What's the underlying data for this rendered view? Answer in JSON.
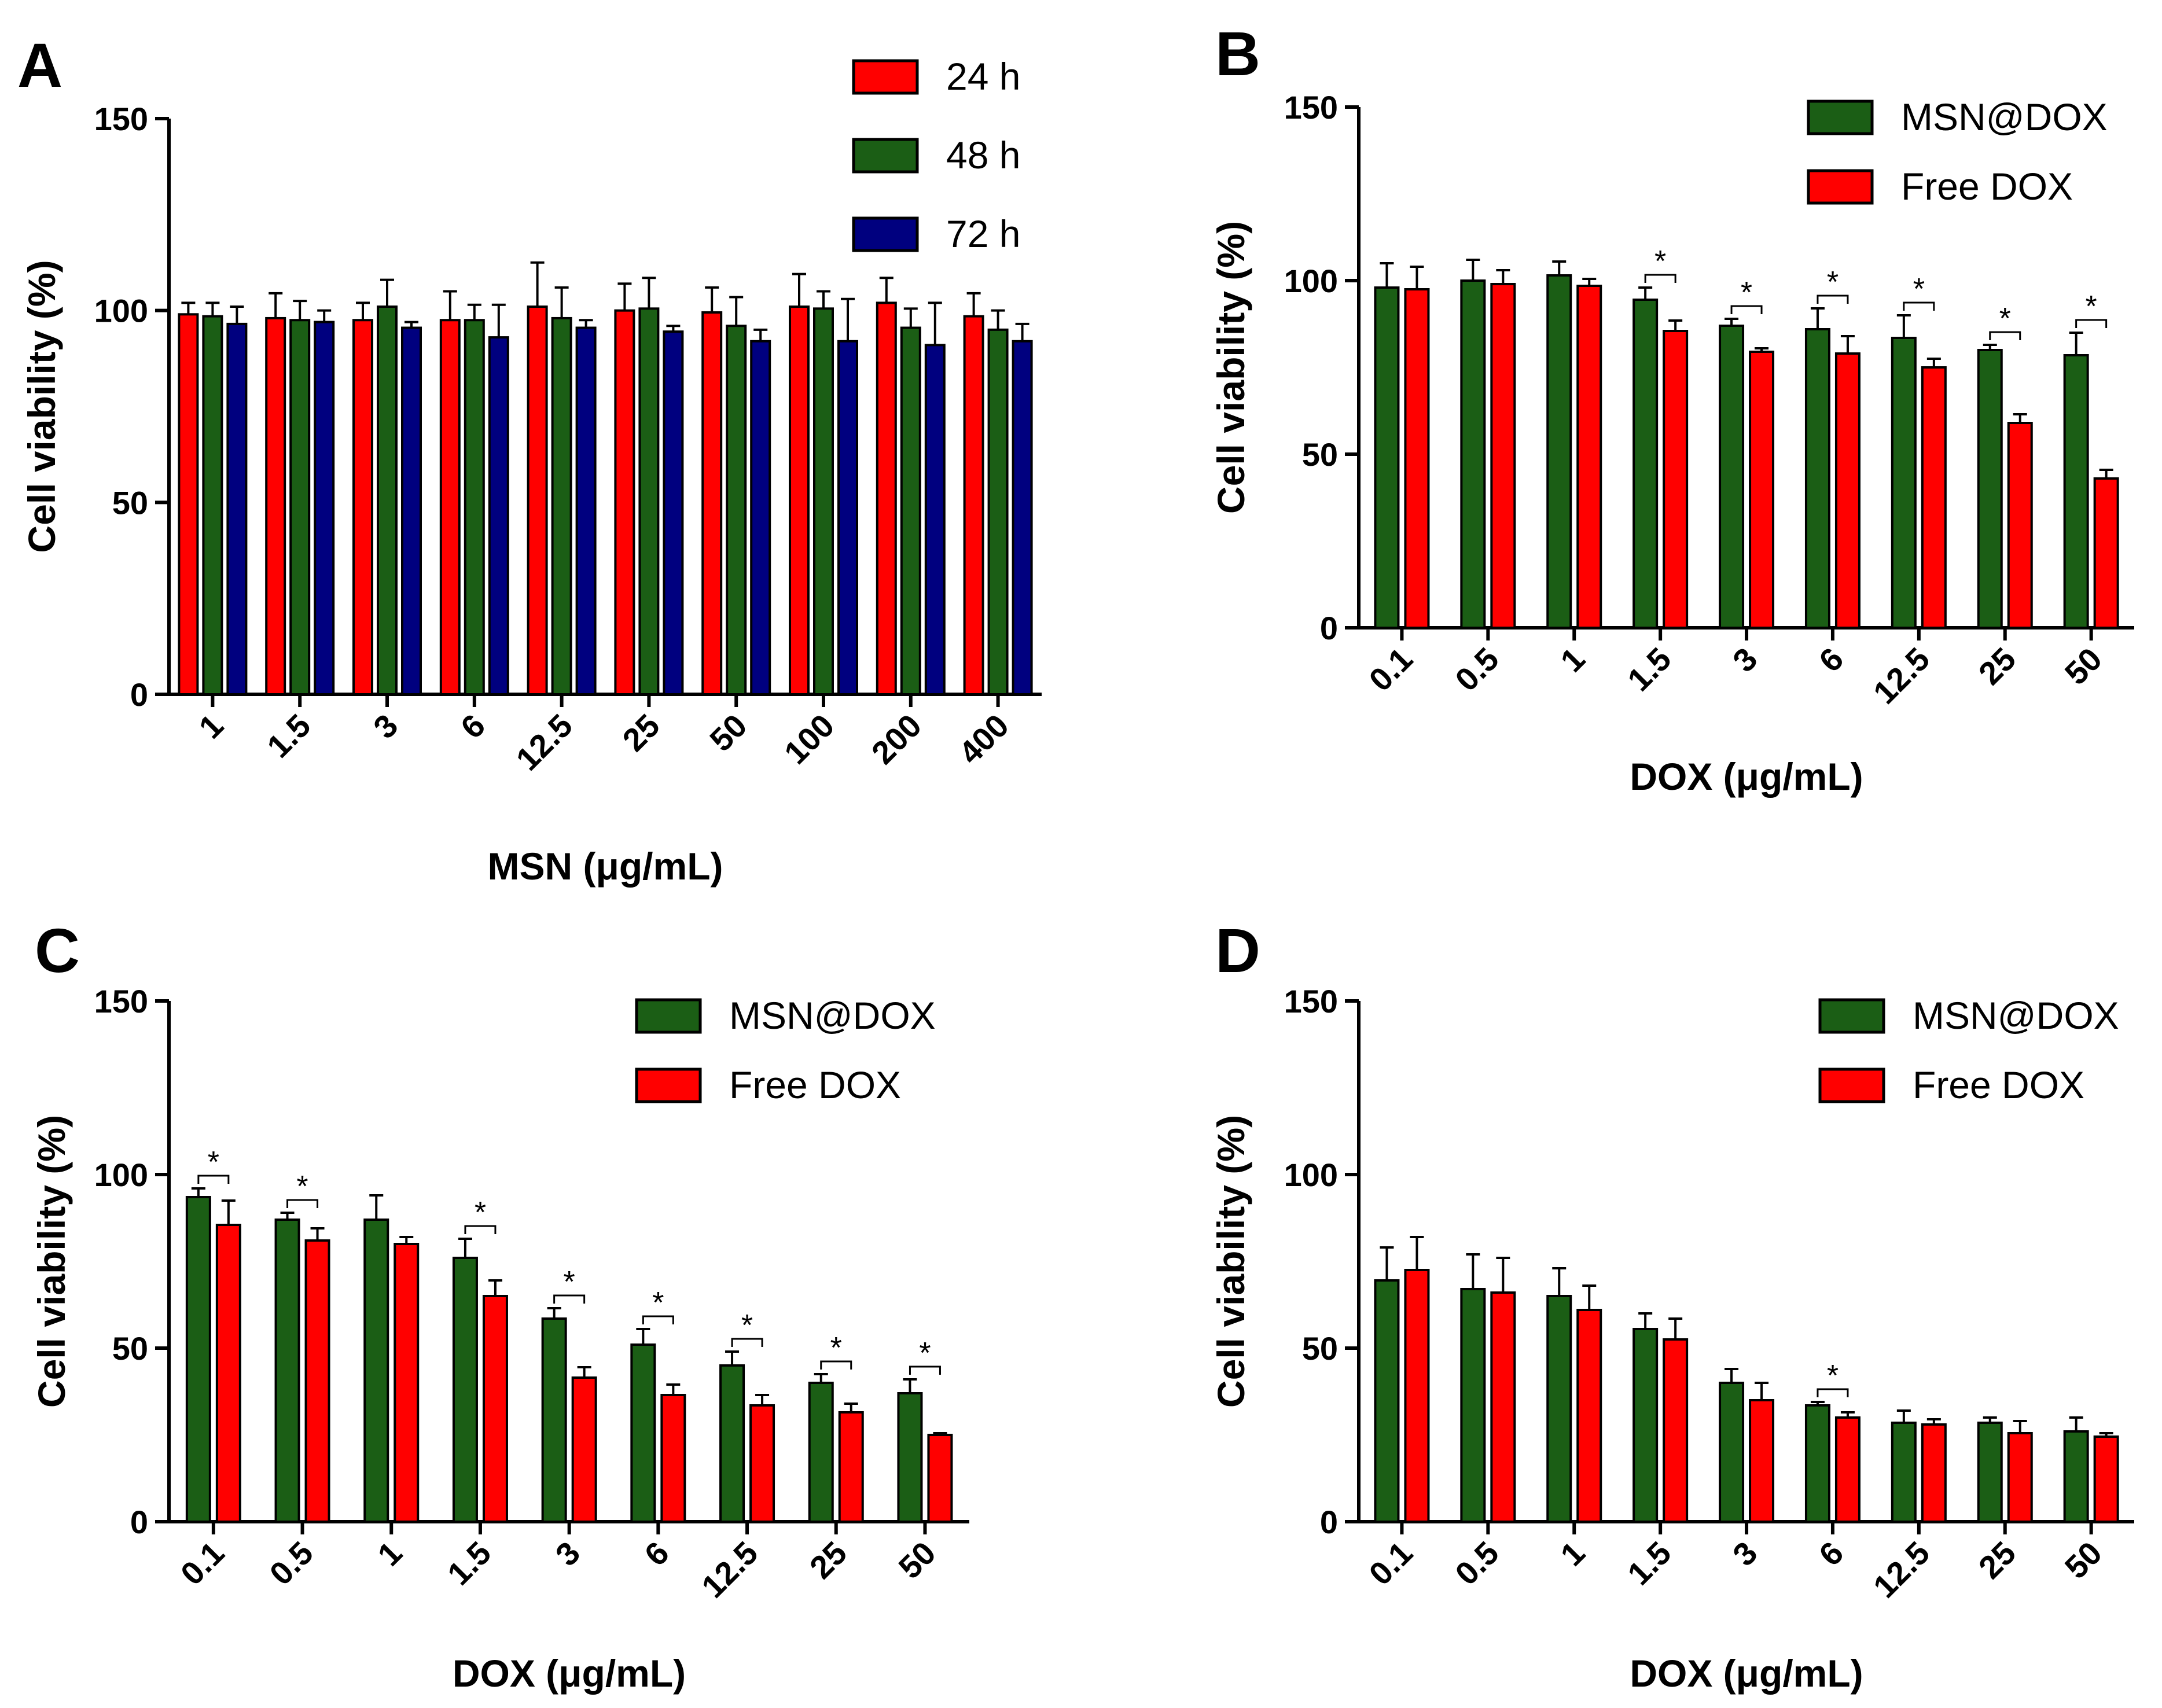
{
  "colors": {
    "red": "#ff0000",
    "green": "#1b5e15",
    "blue": "#00007f"
  },
  "chart_data": [
    {
      "panel": "A",
      "type": "bar",
      "categories": [
        "1",
        "1.5",
        "3",
        "6",
        "12.5",
        "25",
        "50",
        "100",
        "200",
        "400"
      ],
      "series": [
        {
          "name": "24 h",
          "color": "red",
          "values": [
            99,
            98,
            97.5,
            97.5,
            101,
            100,
            99.5,
            101,
            102,
            98.5
          ],
          "errors": [
            3,
            6.5,
            4.5,
            7.5,
            11.5,
            7,
            6.5,
            8.5,
            6.5,
            6
          ]
        },
        {
          "name": "48 h",
          "color": "green",
          "values": [
            98.5,
            97.5,
            101,
            97.5,
            98,
            100.5,
            96,
            100.5,
            95.5,
            95
          ],
          "errors": [
            3.5,
            5,
            7,
            4,
            8,
            8,
            7.5,
            4.5,
            5,
            5
          ]
        },
        {
          "name": "72 h",
          "color": "blue",
          "values": [
            96.5,
            97,
            95.5,
            93,
            95.5,
            94.5,
            92,
            92,
            91,
            92
          ],
          "errors": [
            4.5,
            3,
            1.5,
            8.5,
            2,
            1.5,
            3,
            11,
            11,
            4.5
          ]
        }
      ],
      "xlabel": "MSN (μg/mL)",
      "ylabel": "Cell viability (%)",
      "ylim": [
        0,
        150
      ],
      "yticks": [
        "0",
        "50",
        "100",
        "150"
      ],
      "legend_position": "top-right",
      "significance": []
    },
    {
      "panel": "B",
      "type": "bar",
      "categories": [
        "0.1",
        "0.5",
        "1",
        "1.5",
        "3",
        "6",
        "12.5",
        "25",
        "50"
      ],
      "series": [
        {
          "name": "MSN@DOX",
          "color": "green",
          "values": [
            98,
            100,
            101.5,
            94.5,
            87,
            86,
            83.5,
            80,
            78.5
          ],
          "errors": [
            7,
            6,
            4,
            3.5,
            2,
            6,
            6.5,
            1.5,
            6.5
          ]
        },
        {
          "name": "Free DOX",
          "color": "red",
          "values": [
            97.5,
            99,
            98.5,
            85.5,
            79.5,
            79,
            75,
            59,
            43
          ],
          "errors": [
            6.5,
            4,
            2,
            3,
            1,
            5,
            2.5,
            2.5,
            2.5
          ]
        }
      ],
      "xlabel": "DOX (μg/mL)",
      "ylabel": "Cell viability (%)",
      "ylim": [
        0,
        150
      ],
      "yticks": [
        "0",
        "50",
        "100",
        "150"
      ],
      "legend_position": "top-right",
      "significance": [
        "",
        "",
        "",
        "*",
        "*",
        "*",
        "*",
        "*",
        "*"
      ]
    },
    {
      "panel": "C",
      "type": "bar",
      "categories": [
        "0.1",
        "0.5",
        "1",
        "1.5",
        "3",
        "6",
        "12.5",
        "25",
        "50"
      ],
      "series": [
        {
          "name": "MSN@DOX",
          "color": "green",
          "values": [
            93.5,
            87,
            87,
            76,
            58.5,
            51,
            45,
            40,
            37
          ],
          "errors": [
            2.5,
            2,
            7,
            5.5,
            3,
            4.5,
            4,
            2.5,
            4
          ]
        },
        {
          "name": "Free DOX",
          "color": "red",
          "values": [
            85.5,
            81,
            80,
            65,
            41.5,
            36.5,
            33.5,
            31.5,
            25
          ],
          "errors": [
            7,
            3.5,
            2,
            4.5,
            3,
            3,
            3,
            2.5,
            0.5
          ]
        }
      ],
      "xlabel": "DOX (μg/mL)",
      "ylabel": "Cell viability (%)",
      "ylim": [
        0,
        150
      ],
      "yticks": [
        "0",
        "50",
        "100",
        "150"
      ],
      "legend_position": "top-right",
      "significance": [
        "*",
        "*",
        "",
        "*",
        "*",
        "*",
        "*",
        "*",
        "*"
      ]
    },
    {
      "panel": "D",
      "type": "bar",
      "categories": [
        "0.1",
        "0.5",
        "1",
        "1.5",
        "3",
        "6",
        "12.5",
        "25",
        "50"
      ],
      "series": [
        {
          "name": "MSN@DOX",
          "color": "green",
          "values": [
            69.5,
            67,
            65,
            55.5,
            40,
            33.5,
            28.5,
            28.5,
            26
          ],
          "errors": [
            9.5,
            10,
            8,
            4.5,
            4,
            1,
            3.5,
            1.5,
            4
          ]
        },
        {
          "name": "Free DOX",
          "color": "red",
          "values": [
            72.5,
            66,
            61,
            52.5,
            35,
            30,
            28,
            25.5,
            24.5
          ],
          "errors": [
            9.5,
            10,
            7,
            6,
            5,
            1.5,
            1.5,
            3.5,
            1
          ]
        }
      ],
      "xlabel": "DOX (μg/mL)",
      "ylabel": "Cell viability (%)",
      "ylim": [
        0,
        150
      ],
      "yticks": [
        "0",
        "50",
        "100",
        "150"
      ],
      "legend_position": "top-right",
      "significance": [
        "",
        "",
        "",
        "",
        "",
        "*",
        "",
        "",
        ""
      ]
    }
  ]
}
